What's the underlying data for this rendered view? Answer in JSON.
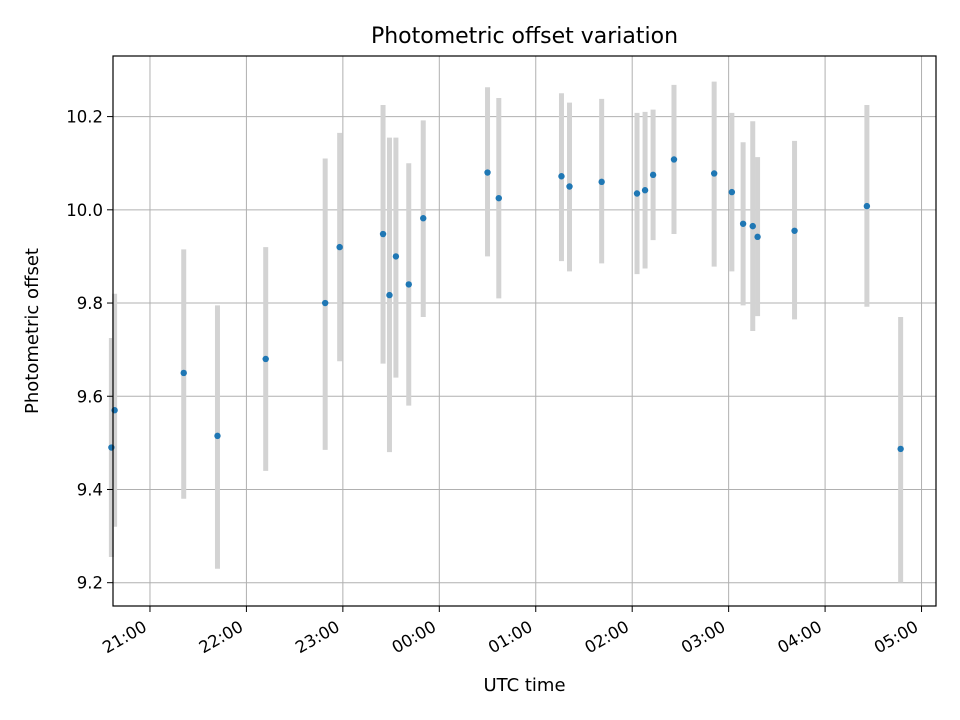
{
  "chart_data": {
    "type": "scatter",
    "title": "Photometric offset variation",
    "xlabel": "UTC time",
    "ylabel": "Photometric offset",
    "xaxis": "time",
    "xlim": [
      "20:37",
      "05:09"
    ],
    "ylim": [
      9.15,
      10.33
    ],
    "x_ticks": [
      "21:00",
      "22:00",
      "23:00",
      "00:00",
      "01:00",
      "02:00",
      "03:00",
      "04:00",
      "05:00"
    ],
    "y_ticks": [
      "9.2",
      "9.4",
      "9.6",
      "9.8",
      "10.0",
      "10.2"
    ],
    "grid": true,
    "point_color": "#1f77b4",
    "errorbar_color": "#d3d3d3",
    "points": [
      {
        "x": "20:36",
        "y": 9.49,
        "ylow": 9.255,
        "yhigh": 9.725
      },
      {
        "x": "20:38",
        "y": 9.57,
        "ylow": 9.32,
        "yhigh": 9.82
      },
      {
        "x": "21:21",
        "y": 9.65,
        "ylow": 9.38,
        "yhigh": 9.915
      },
      {
        "x": "21:42",
        "y": 9.515,
        "ylow": 9.23,
        "yhigh": 9.795
      },
      {
        "x": "22:12",
        "y": 9.68,
        "ylow": 9.44,
        "yhigh": 9.92
      },
      {
        "x": "22:49",
        "y": 9.8,
        "ylow": 9.485,
        "yhigh": 10.11
      },
      {
        "x": "22:58",
        "y": 9.92,
        "ylow": 9.675,
        "yhigh": 10.165
      },
      {
        "x": "23:25",
        "y": 9.948,
        "ylow": 9.67,
        "yhigh": 10.225
      },
      {
        "x": "23:29",
        "y": 9.817,
        "ylow": 9.48,
        "yhigh": 10.155
      },
      {
        "x": "23:33",
        "y": 9.9,
        "ylow": 9.64,
        "yhigh": 10.155
      },
      {
        "x": "23:41",
        "y": 9.84,
        "ylow": 9.58,
        "yhigh": 10.1
      },
      {
        "x": "23:50",
        "y": 9.982,
        "ylow": 9.77,
        "yhigh": 10.192
      },
      {
        "x": "00:30",
        "y": 10.08,
        "ylow": 9.9,
        "yhigh": 10.263
      },
      {
        "x": "00:37",
        "y": 10.025,
        "ylow": 9.81,
        "yhigh": 10.24
      },
      {
        "x": "01:16",
        "y": 10.072,
        "ylow": 9.89,
        "yhigh": 10.25
      },
      {
        "x": "01:21",
        "y": 10.05,
        "ylow": 9.868,
        "yhigh": 10.23
      },
      {
        "x": "01:41",
        "y": 10.06,
        "ylow": 9.885,
        "yhigh": 10.238
      },
      {
        "x": "02:03",
        "y": 10.035,
        "ylow": 9.862,
        "yhigh": 10.208
      },
      {
        "x": "02:08",
        "y": 10.042,
        "ylow": 9.874,
        "yhigh": 10.21
      },
      {
        "x": "02:13",
        "y": 10.075,
        "ylow": 9.935,
        "yhigh": 10.215
      },
      {
        "x": "02:26",
        "y": 10.108,
        "ylow": 9.948,
        "yhigh": 10.268
      },
      {
        "x": "02:51",
        "y": 10.078,
        "ylow": 9.878,
        "yhigh": 10.275
      },
      {
        "x": "03:02",
        "y": 10.038,
        "ylow": 9.868,
        "yhigh": 10.208
      },
      {
        "x": "03:09",
        "y": 9.97,
        "ylow": 9.795,
        "yhigh": 10.145
      },
      {
        "x": "03:15",
        "y": 9.965,
        "ylow": 9.74,
        "yhigh": 10.19
      },
      {
        "x": "03:18",
        "y": 9.942,
        "ylow": 9.772,
        "yhigh": 10.113
      },
      {
        "x": "03:41",
        "y": 9.955,
        "ylow": 9.765,
        "yhigh": 10.148
      },
      {
        "x": "04:26",
        "y": 10.008,
        "ylow": 9.792,
        "yhigh": 10.225
      },
      {
        "x": "04:47",
        "y": 9.487,
        "ylow": 9.2,
        "yhigh": 9.77
      }
    ]
  }
}
